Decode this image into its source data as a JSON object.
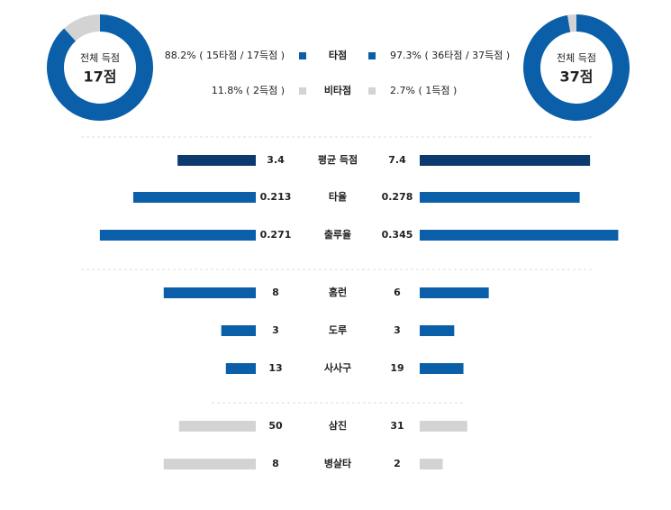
{
  "summary": {
    "colors": [
      "#0a5fa8",
      "#d3d3d3"
    ],
    "legend": [
      "타점",
      "비타점"
    ],
    "left": {
      "caption": "전체 득점",
      "total": "17점",
      "segments": [
        {
          "value": 88.2,
          "label": "88.2% ( 15타점 / 17득점 )"
        },
        {
          "value": 11.8,
          "label": "11.8% ( 2득점 )"
        }
      ]
    },
    "right": {
      "caption": "전체 득점",
      "total": "37점",
      "segments": [
        {
          "value": 97.3,
          "label": "97.3% ( 36타점 / 37득점 )"
        },
        {
          "value": 2.7,
          "label": "2.7% ( 1득점 )"
        }
      ]
    }
  },
  "rows": [
    {
      "label": "평균 득점",
      "left": 3.4,
      "right": 7.4,
      "xlim": [
        0,
        9
      ],
      "color": "#0d3a6e"
    },
    {
      "label": "타율",
      "left": 0.213,
      "right": 0.278,
      "xlim": [
        0,
        0.36
      ],
      "color": "#0a5fa8"
    },
    {
      "label": "출루율",
      "left": 0.271,
      "right": 0.345,
      "xlim": [
        0,
        0.36
      ],
      "color": "#0a5fa8"
    },
    {
      "label": "홈런",
      "left": 8,
      "right": 6,
      "xlim": [
        0,
        18
      ],
      "color": "#0a5fa8"
    },
    {
      "label": "도루",
      "left": 3,
      "right": 3,
      "xlim": [
        0,
        18
      ],
      "color": "#0a5fa8"
    },
    {
      "label": "사사구",
      "left": 13,
      "right": 19,
      "xlim": [
        0,
        90
      ],
      "color": "#0a5fa8"
    },
    {
      "label": "삼진",
      "left": 50,
      "right": 31,
      "xlim": [
        0,
        135
      ],
      "color": "#d3d3d3"
    },
    {
      "label": "병살타",
      "left": 8,
      "right": 2,
      "xlim": [
        0,
        18
      ],
      "color": "#d3d3d3"
    }
  ]
}
